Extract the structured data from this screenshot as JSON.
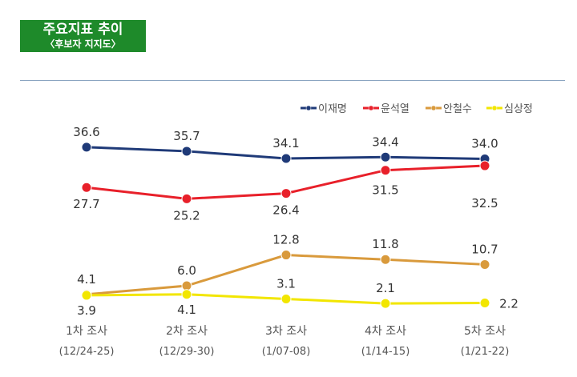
{
  "header": {
    "title": "주요지표 추이",
    "subtitle": "〈후보자 지지도〉"
  },
  "chart_data": {
    "type": "line",
    "categories": [
      "1차 조사",
      "2차 조사",
      "3차 조사",
      "4차 조사",
      "5차 조사"
    ],
    "category_dates": [
      "(12/24-25)",
      "(12/29-30)",
      "(1/07-08)",
      "(1/14-15)",
      "(1/21-22)"
    ],
    "legend_position": "top-right",
    "grid": false,
    "series": [
      {
        "name": "이재명",
        "color": "#1f3a78",
        "values": [
          36.6,
          35.7,
          34.1,
          34.4,
          34.0
        ]
      },
      {
        "name": "윤석열",
        "color": "#e8202a",
        "values": [
          27.7,
          25.2,
          26.4,
          31.5,
          32.5
        ]
      },
      {
        "name": "안철수",
        "color": "#d99a3c",
        "values": [
          4.1,
          6.0,
          12.8,
          11.8,
          10.7
        ]
      },
      {
        "name": "심상정",
        "color": "#f2e600",
        "values": [
          3.9,
          4.1,
          3.1,
          2.1,
          2.2
        ]
      }
    ]
  }
}
